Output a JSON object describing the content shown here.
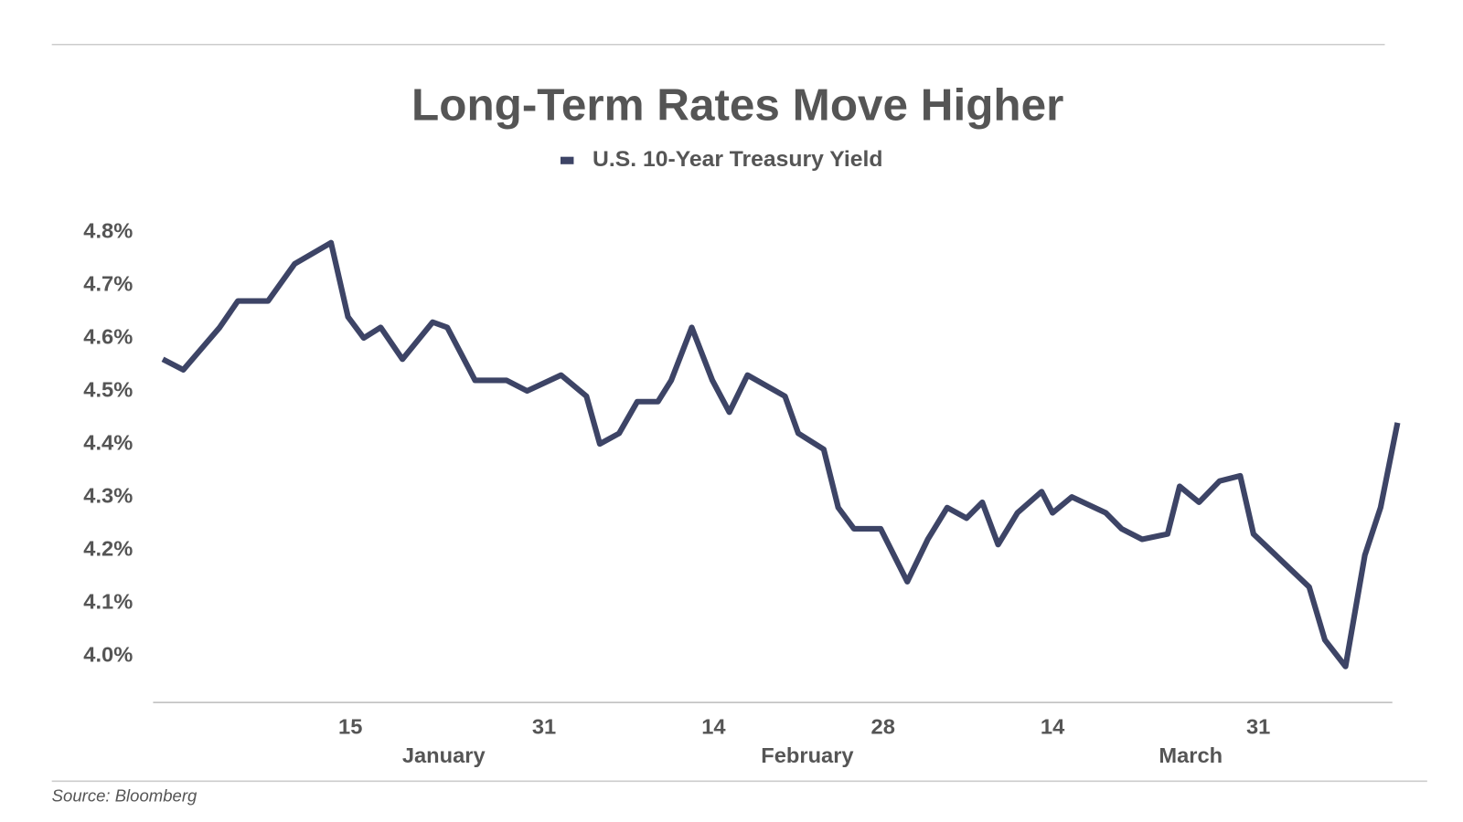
{
  "chart_data": {
    "type": "line",
    "title": "Long-Term Rates Move Higher",
    "source": "Source: Bloomberg",
    "x": [
      -0.5,
      1.2,
      4.2,
      5.7,
      8.2,
      10.4,
      13.4,
      14.8,
      16.1,
      17.5,
      19.3,
      21.8,
      23.0,
      25.3,
      27.9,
      29.6,
      32.4,
      34.5,
      35.6,
      37.2,
      38.7,
      40.4,
      41.5,
      43.2,
      44.9,
      46.3,
      47.8,
      50.9,
      52.0,
      54.1,
      55.3,
      56.6,
      58.8,
      61.0,
      62.7,
      64.3,
      65.9,
      67.2,
      68.5,
      70.1,
      72.1,
      73.0,
      74.6,
      77.4,
      78.7,
      80.4,
      82.5,
      83.5,
      85.1,
      86.8,
      88.5,
      89.6,
      94.2,
      95.5,
      97.2,
      98.8,
      100.1,
      101.5
    ],
    "series": [
      {
        "name": "U.S. 10-Year Treasury Yield",
        "color": "#3d4466",
        "values": [
          4.56,
          4.54,
          4.62,
          4.67,
          4.67,
          4.74,
          4.78,
          4.64,
          4.6,
          4.62,
          4.56,
          4.63,
          4.62,
          4.52,
          4.52,
          4.5,
          4.53,
          4.49,
          4.4,
          4.42,
          4.48,
          4.48,
          4.52,
          4.62,
          4.52,
          4.46,
          4.53,
          4.49,
          4.42,
          4.39,
          4.28,
          4.24,
          4.24,
          4.14,
          4.22,
          4.28,
          4.26,
          4.29,
          4.21,
          4.27,
          4.31,
          4.27,
          4.3,
          4.27,
          4.24,
          4.22,
          4.23,
          4.32,
          4.29,
          4.33,
          4.34,
          4.23,
          4.13,
          4.03,
          3.98,
          4.19,
          4.28,
          4.44
        ]
      }
    ],
    "xlim": [
      -1.3,
      101.6
    ],
    "xticks": [
      15,
      31,
      {
        "value": 45,
        "label": "14"
      },
      {
        "value": 59,
        "label": "28"
      },
      {
        "value": 73,
        "label": "14"
      },
      {
        "value": 90,
        "label": "31"
      }
    ],
    "x_groups": [
      "January",
      "February",
      "March"
    ],
    "ylim": [
      3.912,
      4.83
    ],
    "yticks": [
      {
        "value": 4.0,
        "label": "4.0%"
      },
      {
        "value": 4.1,
        "label": "4.1%"
      },
      {
        "value": 4.2,
        "label": "4.2%"
      },
      {
        "value": 4.3,
        "label": "4.3%"
      },
      {
        "value": 4.4,
        "label": "4.4%"
      },
      {
        "value": 4.5,
        "label": "4.5%"
      },
      {
        "value": 4.6,
        "label": "4.6%"
      },
      {
        "value": 4.7,
        "label": "4.7%"
      },
      {
        "value": 4.8,
        "label": "4.8%"
      }
    ],
    "grid": false
  }
}
